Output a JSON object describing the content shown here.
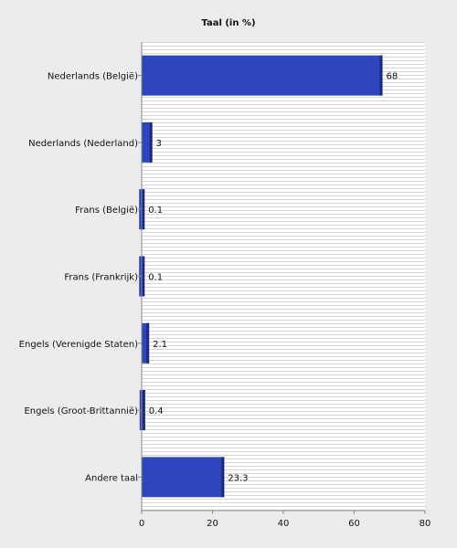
{
  "chart_data": {
    "type": "bar",
    "orientation": "horizontal",
    "title": "Taal (in %)",
    "xlabel": "",
    "ylabel": "",
    "categories": [
      "Nederlands (België)",
      "Nederlands (Nederland)",
      "Frans (België)",
      "Frans (Frankrijk)",
      "Engels (Verenigde Staten)",
      "Engels (Groot-Brittannië)",
      "Andere taal"
    ],
    "values": [
      68,
      3,
      0.1,
      0.1,
      2.1,
      0.4,
      23.3
    ],
    "value_labels": [
      "68",
      "3",
      "0.1",
      "0.1",
      "2.1",
      "0.4",
      "23.3"
    ],
    "xlim": [
      0,
      80
    ],
    "xticks": [
      0,
      20,
      40,
      60,
      80
    ],
    "xtick_labels": [
      "0",
      "20",
      "40",
      "60",
      "80"
    ],
    "grid": "horizontal stripes",
    "colors": {
      "bar": "#2e46bd",
      "bar_edge": "#1c2a78",
      "background": "#ececec",
      "plot_bg": "#ffffff",
      "stripe": "#d6d6d6"
    }
  }
}
